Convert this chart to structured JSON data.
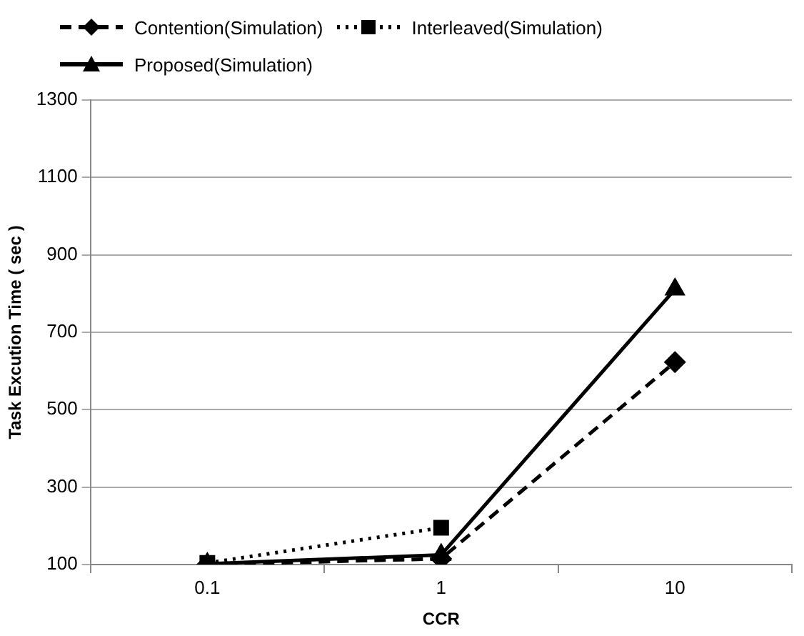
{
  "chart_data": {
    "type": "line",
    "xlabel": "CCR",
    "ylabel": "Task Excution Time ( sec )",
    "categories": [
      "0.1",
      "1",
      "10"
    ],
    "series": [
      {
        "name": "Contention(Simulation)",
        "color": "#000000",
        "marker": "diamond",
        "line_style": "dashed",
        "values": [
          100,
          115,
          623
        ]
      },
      {
        "name": "Interleaved(Simulation)",
        "color": "#000000",
        "marker": "square",
        "line_style": "dotted",
        "values": [
          104,
          195,
          null
        ]
      },
      {
        "name": "Proposed(Simulation)",
        "color": "#000000",
        "marker": "triangle",
        "line_style": "solid",
        "values": [
          102,
          125,
          811
        ]
      }
    ],
    "ylim": [
      100,
      1300
    ],
    "yticks": [
      100,
      300,
      500,
      700,
      900,
      1100,
      1300
    ],
    "grid": "y",
    "legend": "top"
  }
}
